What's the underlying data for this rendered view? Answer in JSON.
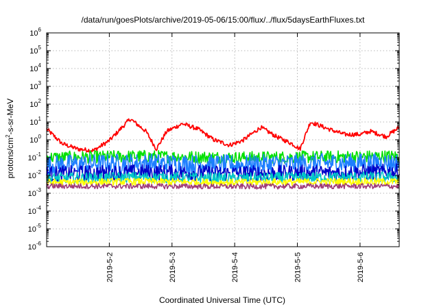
{
  "chart_data": {
    "type": "line",
    "title": "/data/run/goesPlots/archive/2019-05-06/15:00/flux/../flux/5daysEarthFluxes.txt",
    "xlabel": "Coordinated Universal Time (UTC)",
    "ylabel_parts": [
      "protons/cm",
      "2",
      "-s-sr-MeV"
    ],
    "y_scale": "log",
    "ylim": [
      1e-06,
      1000000.0
    ],
    "y_ticks": [
      {
        "base": "10",
        "exp": "-6",
        "value": 1e-06
      },
      {
        "base": "10",
        "exp": "-5",
        "value": 1e-05
      },
      {
        "base": "10",
        "exp": "-4",
        "value": 0.0001
      },
      {
        "base": "10",
        "exp": "-3",
        "value": 0.001
      },
      {
        "base": "10",
        "exp": "-2",
        "value": 0.01
      },
      {
        "base": "10",
        "exp": "-1",
        "value": 0.1
      },
      {
        "base": "10",
        "exp": "0",
        "value": 1
      },
      {
        "base": "10",
        "exp": "1",
        "value": 10
      },
      {
        "base": "10",
        "exp": "2",
        "value": 100
      },
      {
        "base": "10",
        "exp": "3",
        "value": 1000
      },
      {
        "base": "10",
        "exp": "4",
        "value": 10000
      },
      {
        "base": "10",
        "exp": "5",
        "value": 100000
      },
      {
        "base": "10",
        "exp": "6",
        "value": 1000000
      }
    ],
    "xlim": [
      "2019-05-01T00:00",
      "2019-05-06T15:00"
    ],
    "x_ticks": [
      {
        "label": "2019-5-2",
        "value": "2019-05-02T00:00"
      },
      {
        "label": "2019-5-3",
        "value": "2019-05-03T00:00"
      },
      {
        "label": "2019-5-4",
        "value": "2019-05-04T00:00"
      },
      {
        "label": "2019-5-5",
        "value": "2019-05-05T00:00"
      },
      {
        "label": "2019-5-6",
        "value": "2019-05-06T00:00"
      }
    ],
    "grid": true,
    "series": [
      {
        "color": "#ff0000",
        "noise": 0.12,
        "points": [
          [
            "2019-05-01T00:00",
            4
          ],
          [
            "2019-05-01T06:00",
            0.6
          ],
          [
            "2019-05-01T12:00",
            0.3
          ],
          [
            "2019-05-01T18:00",
            0.25
          ],
          [
            "2019-05-02T00:00",
            0.9
          ],
          [
            "2019-05-02T08:00",
            15
          ],
          [
            "2019-05-02T14:00",
            3
          ],
          [
            "2019-05-02T18:00",
            0.3
          ],
          [
            "2019-05-02T22:00",
            3
          ],
          [
            "2019-05-03T04:00",
            8
          ],
          [
            "2019-05-03T10:00",
            4
          ],
          [
            "2019-05-03T16:00",
            1
          ],
          [
            "2019-05-03T22:00",
            0.5
          ],
          [
            "2019-05-04T03:00",
            0.9
          ],
          [
            "2019-05-04T10:00",
            5
          ],
          [
            "2019-05-04T16:00",
            1.5
          ],
          [
            "2019-05-04T22:00",
            0.6
          ],
          [
            "2019-05-05T01:00",
            0.3
          ],
          [
            "2019-05-05T05:00",
            10
          ],
          [
            "2019-05-05T12:00",
            4
          ],
          [
            "2019-05-05T18:00",
            2
          ],
          [
            "2019-05-06T00:00",
            2
          ],
          [
            "2019-05-06T04:00",
            3
          ],
          [
            "2019-05-06T10:00",
            1.5
          ],
          [
            "2019-05-06T15:00",
            5
          ]
        ]
      },
      {
        "color": "#00e000",
        "noise": 0.35,
        "points": [
          [
            "2019-05-01T00:00",
            0.1
          ],
          [
            "2019-05-02T12:00",
            0.12
          ],
          [
            "2019-05-04T00:00",
            0.1
          ],
          [
            "2019-05-05T12:00",
            0.11
          ],
          [
            "2019-05-06T15:00",
            0.12
          ]
        ]
      },
      {
        "color": "#1e7fff",
        "noise": 0.55,
        "points": [
          [
            "2019-05-01T00:00",
            0.04
          ],
          [
            "2019-05-02T12:00",
            0.05
          ],
          [
            "2019-05-04T00:00",
            0.04
          ],
          [
            "2019-05-05T12:00",
            0.05
          ],
          [
            "2019-05-06T15:00",
            0.05
          ]
        ]
      },
      {
        "color": "#0000c8",
        "noise": 0.45,
        "points": [
          [
            "2019-05-01T00:00",
            0.012
          ],
          [
            "2019-05-02T12:00",
            0.015
          ],
          [
            "2019-05-04T00:00",
            0.013
          ],
          [
            "2019-05-05T12:00",
            0.014
          ],
          [
            "2019-05-06T15:00",
            0.016
          ]
        ]
      },
      {
        "color": "#00c8c8",
        "noise": 0.3,
        "points": [
          [
            "2019-05-01T00:00",
            0.007
          ],
          [
            "2019-05-02T12:00",
            0.008
          ],
          [
            "2019-05-04T00:00",
            0.007
          ],
          [
            "2019-05-05T12:00",
            0.008
          ],
          [
            "2019-05-06T15:00",
            0.008
          ]
        ]
      },
      {
        "color": "#ffff00",
        "noise": 0.2,
        "points": [
          [
            "2019-05-01T00:00",
            0.004
          ],
          [
            "2019-05-02T12:00",
            0.0045
          ],
          [
            "2019-05-04T00:00",
            0.004
          ],
          [
            "2019-05-05T12:00",
            0.0045
          ],
          [
            "2019-05-06T15:00",
            0.0045
          ]
        ]
      },
      {
        "color": "#a03c78",
        "noise": 0.15,
        "points": [
          [
            "2019-05-01T00:00",
            0.0025
          ],
          [
            "2019-05-02T12:00",
            0.0025
          ],
          [
            "2019-05-04T00:00",
            0.0024
          ],
          [
            "2019-05-05T12:00",
            0.0025
          ],
          [
            "2019-05-06T15:00",
            0.0025
          ]
        ]
      }
    ]
  }
}
